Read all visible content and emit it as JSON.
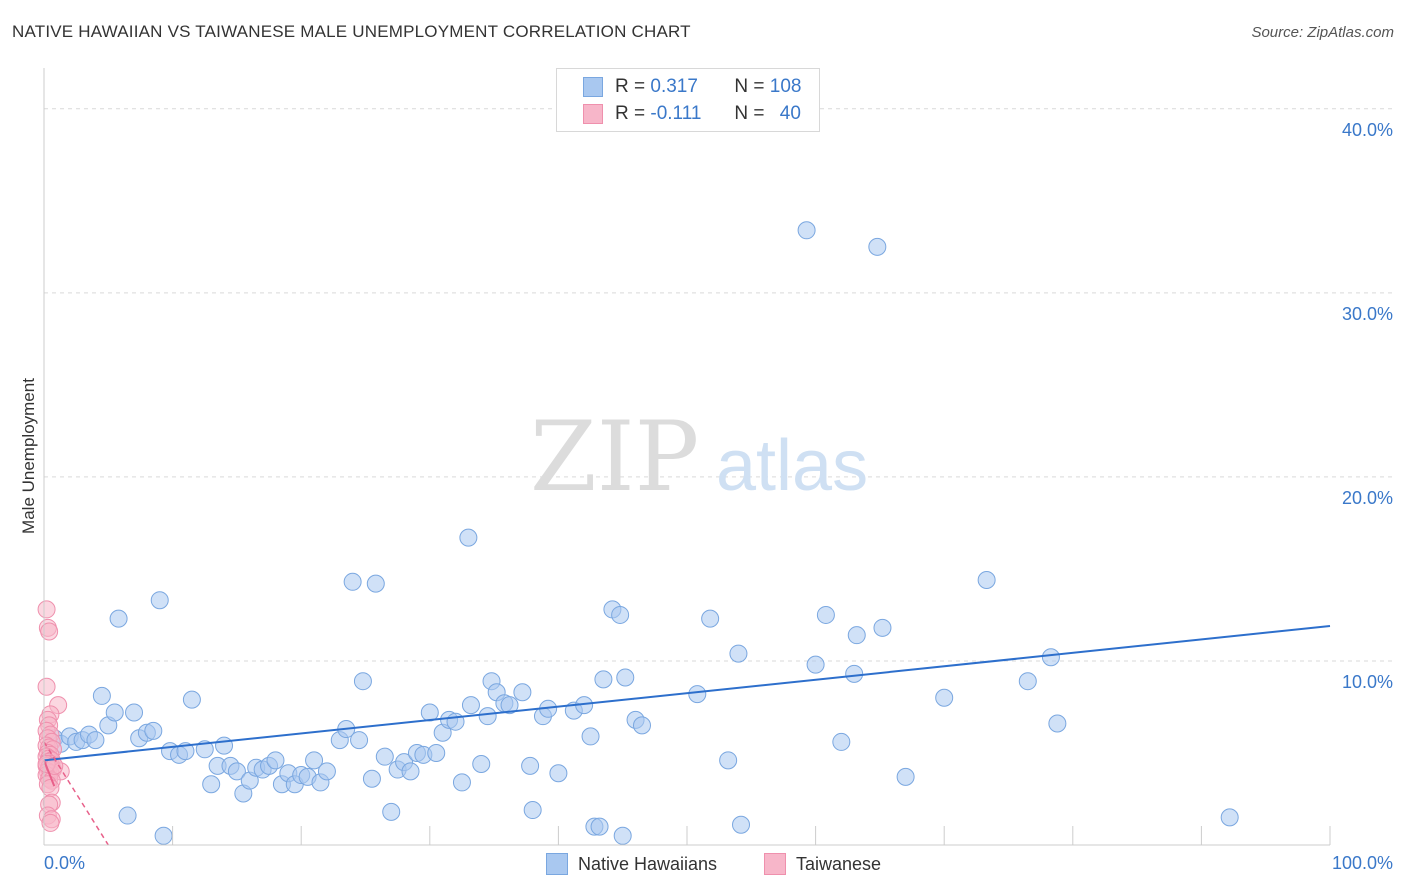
{
  "title": "NATIVE HAWAIIAN VS TAIWANESE MALE UNEMPLOYMENT CORRELATION CHART",
  "source": "Source: ZipAtlas.com",
  "watermark": {
    "zip": "ZIP",
    "atlas": "atlas"
  },
  "legend": {
    "rows": [
      {
        "r_label": "R = ",
        "r_value": "0.317",
        "n_label": "N = ",
        "n_value": "108",
        "color": "#a9c8f0",
        "border": "#7aa7e0"
      },
      {
        "r_label": "R = ",
        "r_value": "-0.111",
        "n_label": "N = ",
        "n_value": "40",
        "color": "#f7b6c9",
        "border": "#ef90ad"
      }
    ]
  },
  "bottom_legend": [
    {
      "label": "Native Hawaiians",
      "color": "#a9c8f0",
      "border": "#7aa7e0"
    },
    {
      "label": "Taiwanese",
      "color": "#f7b6c9",
      "border": "#ef90ad"
    }
  ],
  "chart_data": {
    "type": "scatter",
    "title": "NATIVE HAWAIIAN VS TAIWANESE MALE UNEMPLOYMENT CORRELATION CHART",
    "xlabel": "",
    "ylabel": "Male Unemployment",
    "xlim": [
      0,
      100
    ],
    "ylim": [
      0,
      42
    ],
    "x_tick_labels": [
      "0.0%",
      "100.0%"
    ],
    "y_ticks": [
      10,
      20,
      30,
      40
    ],
    "y_tick_labels": [
      "10.0%",
      "20.0%",
      "30.0%",
      "40.0%"
    ],
    "grid": true,
    "series": [
      {
        "name": "Native Hawaiians",
        "color": "#a9c8f0",
        "edge": "#7aa7e0",
        "trend": {
          "x": [
            0,
            100
          ],
          "y": [
            4.6,
            11.9
          ],
          "color": "#2d6fcc",
          "dashed": false
        },
        "points": [
          [
            0.8,
            5.8
          ],
          [
            1.3,
            5.5
          ],
          [
            2.0,
            5.9
          ],
          [
            2.5,
            5.6
          ],
          [
            3.0,
            5.7
          ],
          [
            3.5,
            6.0
          ],
          [
            4.0,
            5.7
          ],
          [
            4.5,
            8.1
          ],
          [
            5.0,
            6.5
          ],
          [
            5.5,
            7.2
          ],
          [
            5.8,
            12.3
          ],
          [
            6.5,
            1.6
          ],
          [
            7.0,
            7.2
          ],
          [
            7.4,
            5.8
          ],
          [
            8.0,
            6.1
          ],
          [
            8.5,
            6.2
          ],
          [
            9.0,
            13.3
          ],
          [
            9.3,
            0.5
          ],
          [
            9.8,
            5.1
          ],
          [
            10.5,
            4.9
          ],
          [
            11.0,
            5.1
          ],
          [
            11.5,
            7.9
          ],
          [
            12.5,
            5.2
          ],
          [
            13.0,
            3.3
          ],
          [
            13.5,
            4.3
          ],
          [
            14.0,
            5.4
          ],
          [
            14.5,
            4.3
          ],
          [
            15.0,
            4.0
          ],
          [
            15.5,
            2.8
          ],
          [
            16.0,
            3.5
          ],
          [
            16.5,
            4.2
          ],
          [
            17.0,
            4.1
          ],
          [
            17.5,
            4.3
          ],
          [
            18.0,
            4.6
          ],
          [
            18.5,
            3.3
          ],
          [
            19.0,
            3.9
          ],
          [
            19.5,
            3.3
          ],
          [
            20.0,
            3.8
          ],
          [
            20.5,
            3.7
          ],
          [
            21.0,
            4.6
          ],
          [
            21.5,
            3.4
          ],
          [
            22.0,
            4.0
          ],
          [
            23.0,
            5.7
          ],
          [
            23.5,
            6.3
          ],
          [
            24.0,
            14.3
          ],
          [
            24.5,
            5.7
          ],
          [
            24.8,
            8.9
          ],
          [
            25.5,
            3.6
          ],
          [
            25.8,
            14.2
          ],
          [
            26.5,
            4.8
          ],
          [
            27.0,
            1.8
          ],
          [
            27.5,
            4.1
          ],
          [
            28.0,
            4.5
          ],
          [
            28.5,
            4.0
          ],
          [
            29.0,
            5.0
          ],
          [
            29.5,
            4.9
          ],
          [
            30.0,
            7.2
          ],
          [
            30.5,
            5.0
          ],
          [
            31.0,
            6.1
          ],
          [
            31.5,
            6.8
          ],
          [
            32.0,
            6.7
          ],
          [
            32.5,
            3.4
          ],
          [
            33.0,
            16.7
          ],
          [
            33.2,
            7.6
          ],
          [
            34.0,
            4.4
          ],
          [
            34.5,
            7.0
          ],
          [
            34.8,
            8.9
          ],
          [
            35.2,
            8.3
          ],
          [
            35.8,
            7.7
          ],
          [
            36.2,
            7.6
          ],
          [
            37.2,
            8.3
          ],
          [
            37.8,
            4.3
          ],
          [
            38.0,
            1.9
          ],
          [
            38.8,
            7.0
          ],
          [
            39.2,
            7.4
          ],
          [
            40.0,
            3.9
          ],
          [
            41.2,
            7.3
          ],
          [
            42.0,
            7.6
          ],
          [
            42.5,
            5.9
          ],
          [
            42.8,
            1.0
          ],
          [
            43.2,
            1.0
          ],
          [
            43.5,
            9.0
          ],
          [
            44.2,
            12.8
          ],
          [
            44.8,
            12.5
          ],
          [
            45.0,
            0.5
          ],
          [
            45.2,
            9.1
          ],
          [
            46.0,
            6.8
          ],
          [
            46.5,
            6.5
          ],
          [
            50.8,
            8.2
          ],
          [
            51.8,
            12.3
          ],
          [
            53.2,
            4.6
          ],
          [
            54.2,
            1.1
          ],
          [
            59.3,
            33.4
          ],
          [
            60.0,
            9.8
          ],
          [
            60.8,
            12.5
          ],
          [
            62.0,
            5.6
          ],
          [
            63.0,
            9.3
          ],
          [
            63.2,
            11.4
          ],
          [
            65.2,
            11.8
          ],
          [
            67.0,
            3.7
          ],
          [
            70.0,
            8.0
          ],
          [
            73.3,
            14.4
          ],
          [
            76.5,
            8.9
          ],
          [
            78.3,
            10.2
          ],
          [
            78.8,
            6.6
          ],
          [
            92.2,
            1.5
          ],
          [
            64.8,
            32.5
          ],
          [
            54.0,
            10.4
          ]
        ]
      },
      {
        "name": "Taiwanese",
        "color": "#f7b6c9",
        "edge": "#ef90ad",
        "trend": {
          "x": [
            0,
            5
          ],
          "y": [
            5.6,
            0.0
          ],
          "color": "#e8608a",
          "dashed": true
        },
        "points": [
          [
            0.2,
            12.8
          ],
          [
            0.3,
            11.8
          ],
          [
            0.4,
            11.6
          ],
          [
            0.2,
            8.6
          ],
          [
            1.1,
            7.6
          ],
          [
            0.5,
            7.1
          ],
          [
            0.3,
            6.8
          ],
          [
            0.4,
            6.5
          ],
          [
            0.2,
            6.2
          ],
          [
            0.5,
            6.0
          ],
          [
            0.3,
            5.8
          ],
          [
            0.6,
            5.6
          ],
          [
            0.2,
            5.4
          ],
          [
            0.4,
            5.3
          ],
          [
            0.7,
            5.2
          ],
          [
            0.3,
            5.0
          ],
          [
            0.5,
            4.9
          ],
          [
            0.2,
            4.8
          ],
          [
            0.4,
            4.7
          ],
          [
            0.6,
            4.6
          ],
          [
            0.3,
            4.5
          ],
          [
            0.5,
            4.4
          ],
          [
            0.2,
            4.3
          ],
          [
            0.4,
            4.2
          ],
          [
            0.7,
            4.1
          ],
          [
            0.3,
            4.0
          ],
          [
            0.5,
            3.9
          ],
          [
            1.3,
            4.0
          ],
          [
            0.2,
            3.8
          ],
          [
            0.4,
            3.6
          ],
          [
            0.6,
            3.5
          ],
          [
            0.3,
            3.3
          ],
          [
            0.5,
            3.1
          ],
          [
            0.6,
            2.3
          ],
          [
            0.4,
            2.2
          ],
          [
            0.3,
            1.6
          ],
          [
            0.6,
            1.4
          ],
          [
            0.5,
            1.2
          ],
          [
            0.2,
            4.4
          ],
          [
            0.8,
            4.3
          ]
        ]
      }
    ]
  }
}
